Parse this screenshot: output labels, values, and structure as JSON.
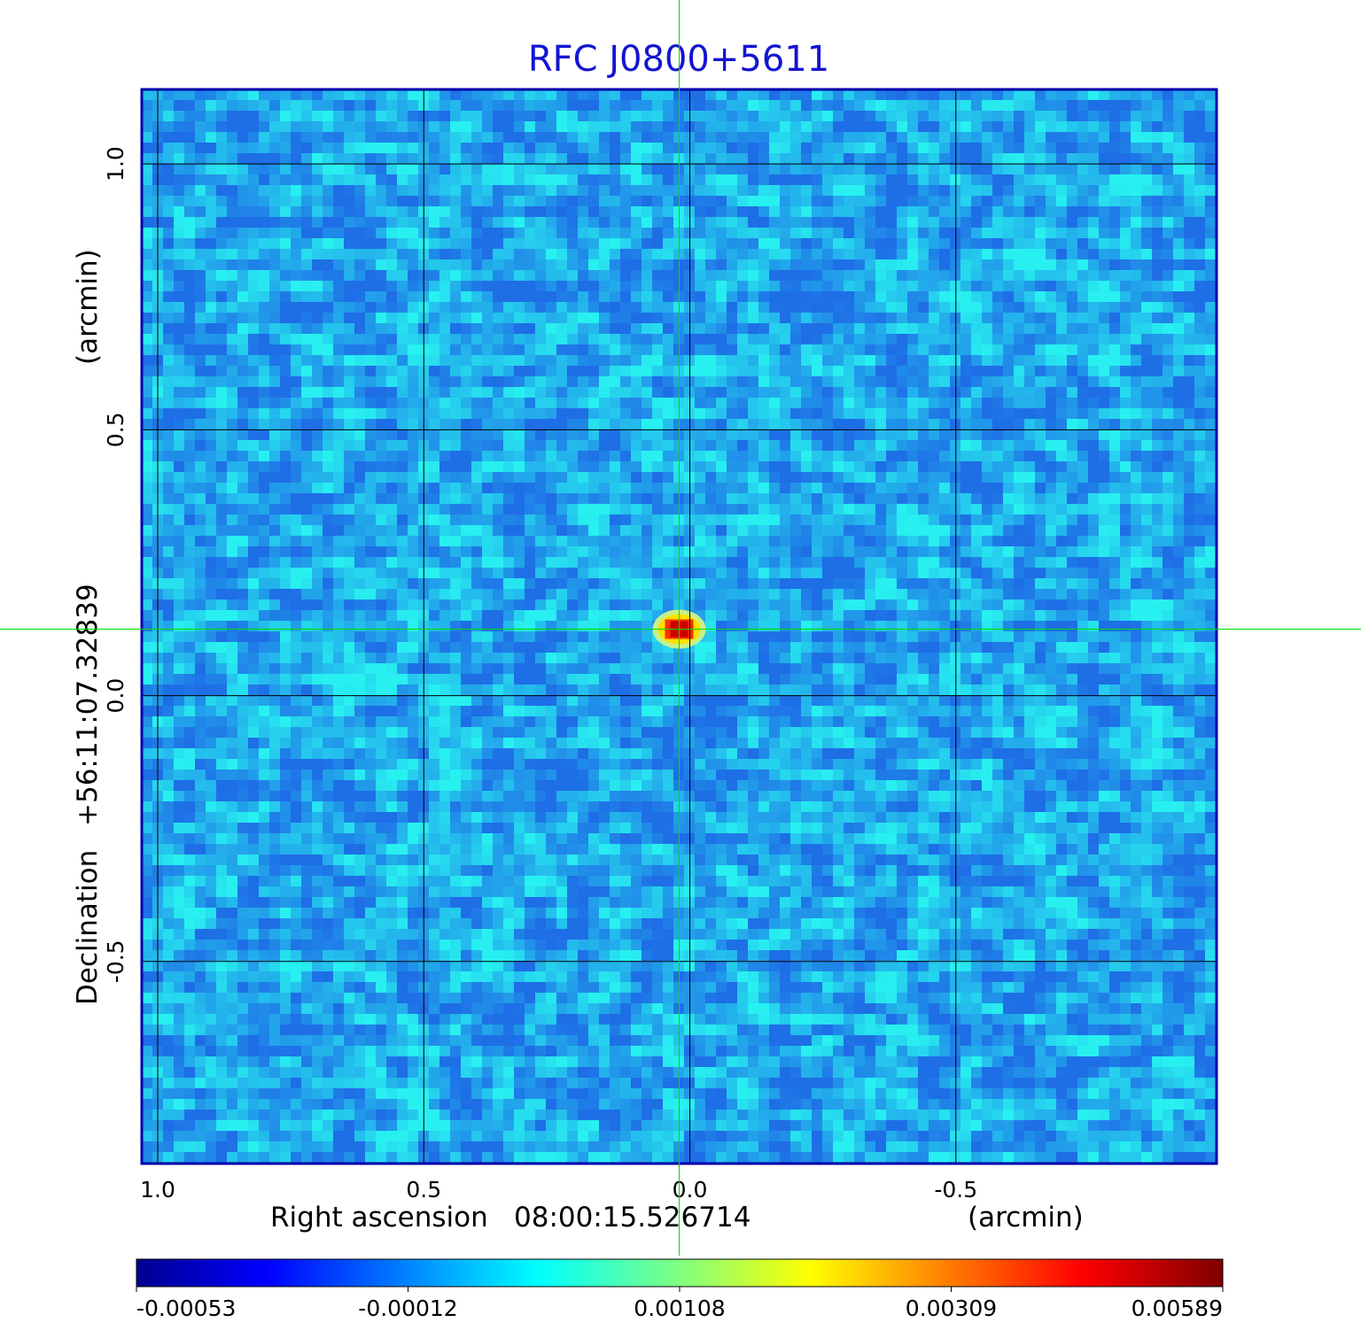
{
  "chart_data": {
    "type": "heatmap",
    "title": "RFC J0800+5611",
    "x_axis": {
      "label": "Right ascension",
      "center": "08:00:15.526714",
      "unit": "(arcmin)",
      "ticks": [
        1.0,
        0.5,
        0.0,
        -0.5
      ],
      "tick_labels": [
        "1.0",
        "0.5",
        "0.0",
        "-0.5"
      ],
      "range": [
        1.03,
        -0.99
      ]
    },
    "y_axis": {
      "label": "Declination",
      "center": "+56:11:07.32839",
      "unit": "(arcmin)",
      "ticks": [
        1.0,
        0.5,
        0.0,
        -0.5
      ],
      "tick_labels": [
        "1.0",
        "0.5",
        "0.0",
        "-0.5"
      ],
      "range": [
        -0.88,
        1.14
      ]
    },
    "grid": true,
    "crosshair": {
      "x": 0.02,
      "y": 0.125,
      "color": "#00dd00"
    },
    "source_peak": {
      "x": 0.02,
      "y": 0.125,
      "value": 0.00589
    },
    "colorbar": {
      "orientation": "horizontal",
      "colormap": "jet",
      "range": [
        -0.00053,
        0.00589
      ],
      "ticks": [
        -0.00053,
        -0.00012,
        0.00108,
        0.00309,
        0.00589
      ],
      "tick_labels": [
        "-0.00053",
        "-0.00012",
        "0.00108",
        "0.00309",
        "0.00589"
      ]
    },
    "colors": {
      "frame": "#0000aa",
      "title": "#1414d2",
      "grid": "#000000",
      "crosshair": "#00dd00",
      "background_noise_low": "#1e78e6",
      "background_noise_high": "#28f0f0",
      "peak": "#cc0000"
    }
  }
}
